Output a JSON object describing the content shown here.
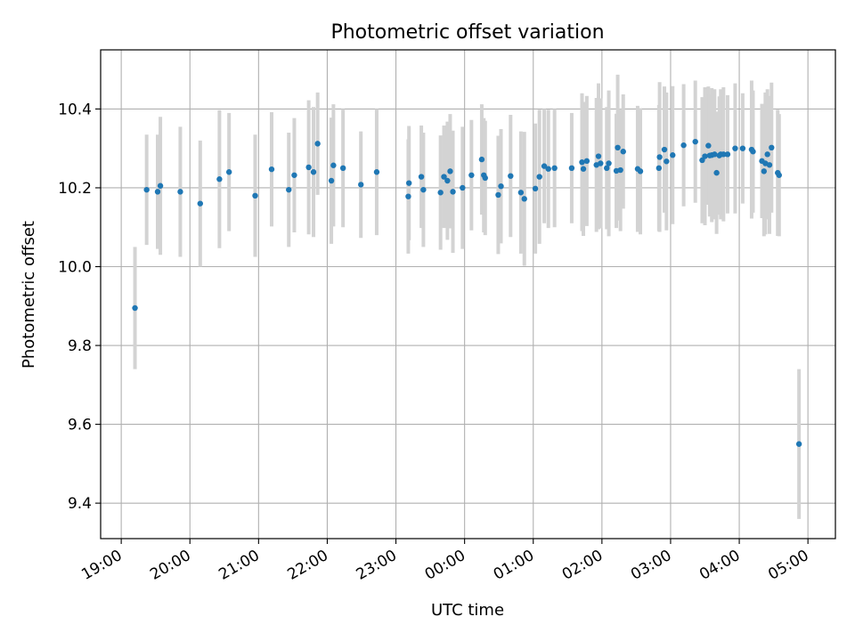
{
  "chart_data": {
    "type": "scatter",
    "title": "Photometric offset variation",
    "xlabel": "UTC time",
    "ylabel": "Photometric offset",
    "xlim_hours": [
      18.7,
      29.4
    ],
    "ylim": [
      9.31,
      10.55
    ],
    "grid": true,
    "x_ticks": [
      {
        "value": 19,
        "label": "19:00"
      },
      {
        "value": 20,
        "label": "20:00"
      },
      {
        "value": 21,
        "label": "21:00"
      },
      {
        "value": 22,
        "label": "22:00"
      },
      {
        "value": 23,
        "label": "23:00"
      },
      {
        "value": 24,
        "label": "00:00"
      },
      {
        "value": 25,
        "label": "01:00"
      },
      {
        "value": 26,
        "label": "02:00"
      },
      {
        "value": 27,
        "label": "03:00"
      },
      {
        "value": 28,
        "label": "04:00"
      },
      {
        "value": 29,
        "label": "05:00"
      }
    ],
    "y_ticks": [
      {
        "value": 9.4,
        "label": "9.4"
      },
      {
        "value": 9.6,
        "label": "9.6"
      },
      {
        "value": 9.8,
        "label": "9.8"
      },
      {
        "value": 10.0,
        "label": "10.0"
      },
      {
        "value": 10.2,
        "label": "10.2"
      },
      {
        "value": 10.4,
        "label": "10.4"
      }
    ],
    "point_color": "#1f77b4",
    "errorbar_color": "#d3d3d3",
    "series": [
      {
        "name": "Photometric offset",
        "x": [
          19.2,
          19.37,
          19.53,
          19.57,
          19.86,
          20.15,
          20.43,
          20.57,
          20.95,
          21.19,
          21.44,
          21.52,
          21.73,
          21.8,
          21.86,
          22.06,
          22.09,
          22.23,
          22.49,
          22.72,
          23.18,
          23.19,
          23.37,
          23.4,
          23.65,
          23.7,
          23.75,
          23.79,
          23.83,
          23.97,
          24.1,
          24.25,
          24.28,
          24.3,
          24.49,
          24.53,
          24.67,
          24.82,
          24.87,
          25.03,
          25.09,
          25.16,
          25.22,
          25.31,
          25.56,
          25.71,
          25.73,
          25.78,
          25.92,
          25.95,
          25.98,
          26.07,
          26.1,
          26.21,
          26.23,
          26.27,
          26.31,
          26.52,
          26.56,
          26.83,
          26.84,
          26.91,
          26.94,
          27.03,
          27.19,
          27.36,
          27.46,
          27.5,
          27.55,
          27.57,
          27.6,
          27.64,
          27.67,
          27.71,
          27.73,
          27.77,
          27.83,
          27.94,
          28.05,
          28.18,
          28.2,
          28.33,
          28.36,
          28.38,
          28.41,
          28.44,
          28.47,
          28.56,
          28.58,
          28.87
        ],
        "y": [
          9.895,
          10.195,
          10.19,
          10.205,
          10.19,
          10.16,
          10.222,
          10.24,
          10.18,
          10.247,
          10.195,
          10.232,
          10.252,
          10.24,
          10.312,
          10.218,
          10.257,
          10.25,
          10.208,
          10.24,
          10.178,
          10.212,
          10.228,
          10.195,
          10.188,
          10.228,
          10.218,
          10.242,
          10.19,
          10.2,
          10.232,
          10.272,
          10.232,
          10.225,
          10.182,
          10.204,
          10.23,
          10.188,
          10.172,
          10.198,
          10.228,
          10.255,
          10.248,
          10.25,
          10.25,
          10.265,
          10.248,
          10.268,
          10.258,
          10.28,
          10.262,
          10.25,
          10.262,
          10.243,
          10.302,
          10.245,
          10.292,
          10.248,
          10.242,
          10.25,
          10.278,
          10.297,
          10.267,
          10.283,
          10.308,
          10.317,
          10.27,
          10.28,
          10.307,
          10.282,
          10.283,
          10.285,
          10.238,
          10.282,
          10.285,
          10.285,
          10.285,
          10.3,
          10.3,
          10.297,
          10.292,
          10.268,
          10.242,
          10.262,
          10.285,
          10.258,
          10.302,
          10.238,
          10.232,
          9.55
        ],
        "err": [
          0.155,
          0.14,
          0.145,
          0.175,
          0.165,
          0.16,
          0.175,
          0.15,
          0.155,
          0.145,
          0.145,
          0.145,
          0.17,
          0.165,
          0.13,
          0.16,
          0.155,
          0.15,
          0.135,
          0.16,
          0.145,
          0.145,
          0.13,
          0.145,
          0.145,
          0.13,
          0.15,
          0.145,
          0.155,
          0.155,
          0.14,
          0.14,
          0.145,
          0.145,
          0.15,
          0.145,
          0.155,
          0.155,
          0.17,
          0.165,
          0.17,
          0.145,
          0.15,
          0.15,
          0.14,
          0.175,
          0.17,
          0.165,
          0.17,
          0.185,
          0.165,
          0.155,
          0.185,
          0.145,
          0.185,
          0.155,
          0.145,
          0.16,
          0.16,
          0.16,
          0.19,
          0.16,
          0.175,
          0.175,
          0.155,
          0.155,
          0.16,
          0.175,
          0.15,
          0.155,
          0.17,
          0.165,
          0.155,
          0.15,
          0.165,
          0.17,
          0.15,
          0.165,
          0.14,
          0.175,
          0.155,
          0.145,
          0.165,
          0.18,
          0.165,
          0.175,
          0.165,
          0.16,
          0.155,
          0.19
        ]
      }
    ]
  }
}
